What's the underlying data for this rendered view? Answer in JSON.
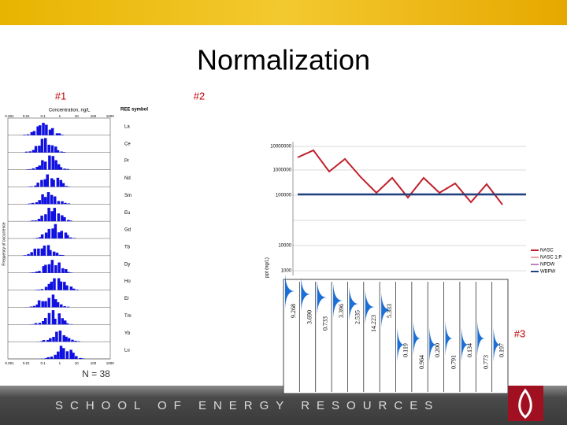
{
  "header": {
    "title": "Normalization"
  },
  "footer": {
    "text": "SCHOOL OF ENERGY RESOURCES"
  },
  "panel1": {
    "label": "#1",
    "x_axis_title": "Concentration, ng/L",
    "ree_header": "REE symbol",
    "y_axis_title": "Frequency of occurrence",
    "elements": [
      "La",
      "Ce",
      "Pr",
      "Nd",
      "Sm",
      "Eu",
      "Gd",
      "Tb",
      "Dy",
      "Ho",
      "Er",
      "Tm",
      "Yb",
      "Lu"
    ],
    "ticks": [
      "0.001",
      "0.01",
      "0.1",
      "1",
      "10",
      "100",
      "1000"
    ],
    "n_label": "N = 38"
  },
  "panel2": {
    "label": "#2",
    "y_axis_title": "ppt (ng/L)",
    "y_ticks": [
      "10000000",
      "1000000",
      "100000",
      "10000",
      "1000"
    ],
    "legend": [
      "NASC",
      "NASC 1:P",
      "NPDW",
      "WBPW"
    ]
  },
  "panel3": {
    "label": "#3",
    "values": [
      "9.268",
      "3.690",
      "0.733",
      "3.396",
      "2.535",
      "14.223",
      "5.333",
      "0.119",
      "0.964",
      "0.200",
      "0.791",
      "0.134",
      "0.773",
      "0.197"
    ]
  }
}
